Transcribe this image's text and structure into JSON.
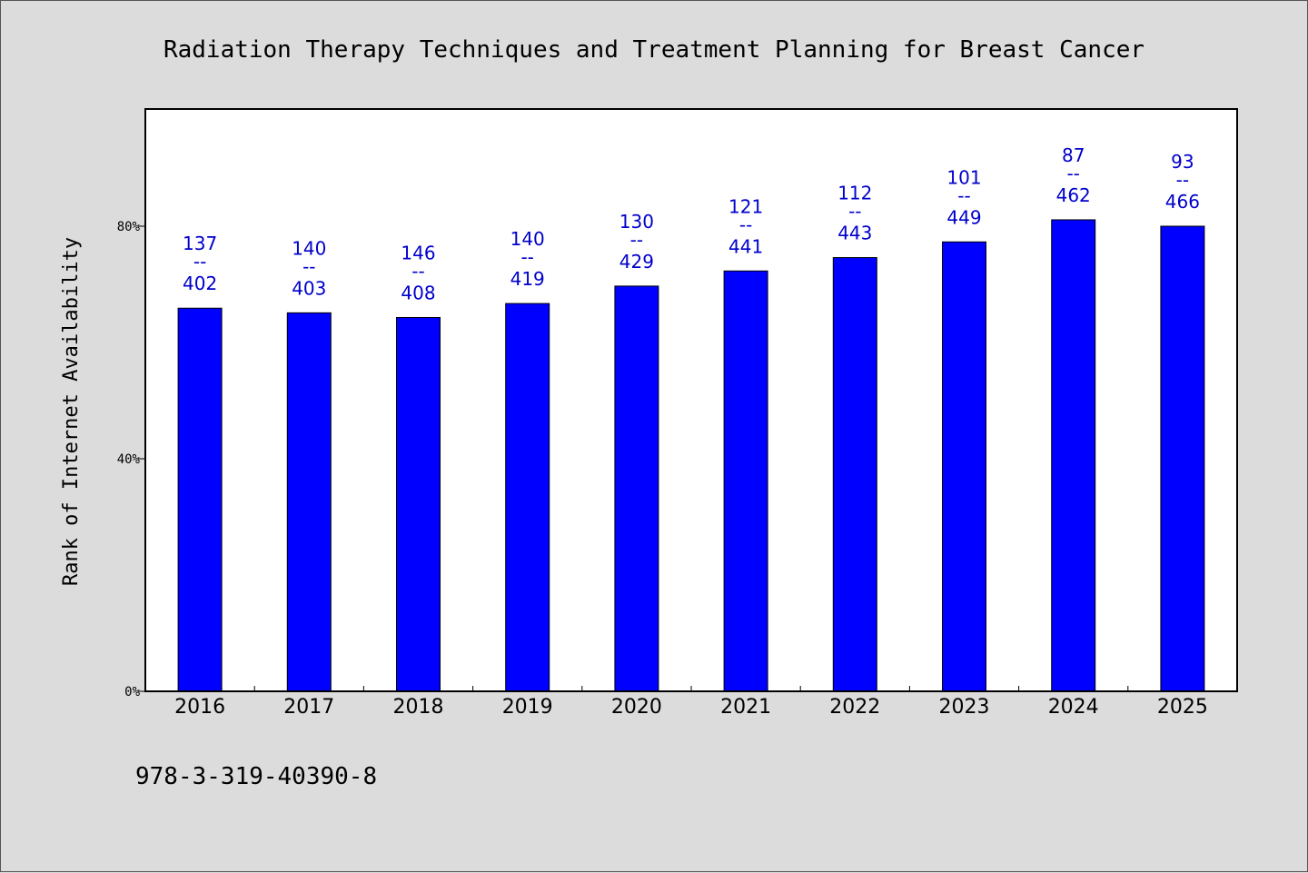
{
  "chart_data": {
    "type": "bar",
    "title": "Radiation Therapy Techniques and Treatment Planning for Breast Cancer",
    "ylabel": "Rank of Internet Availability",
    "xlabel": "",
    "categories": [
      "2016",
      "2017",
      "2018",
      "2019",
      "2020",
      "2021",
      "2022",
      "2023",
      "2024",
      "2025"
    ],
    "values": [
      65.9,
      65.1,
      64.3,
      66.7,
      69.7,
      72.3,
      74.6,
      77.3,
      81.1,
      80.0
    ],
    "labels_top": [
      "137",
      "140",
      "146",
      "140",
      "130",
      "121",
      "112",
      "101",
      "87",
      "93"
    ],
    "labels_sep": "--",
    "labels_bottom": [
      "402",
      "403",
      "408",
      "419",
      "429",
      "441",
      "443",
      "449",
      "462",
      "466"
    ],
    "yticks": [
      0,
      40,
      80
    ],
    "ytick_labels": [
      "0%",
      "40%",
      "80%"
    ],
    "ylim": [
      0,
      100
    ],
    "grid": false,
    "legend": "none",
    "colors": {
      "bar": "#0000ff",
      "data_label": "#0000cc",
      "plot_background": "#ffffff",
      "page_background": "#dcdcdc"
    }
  },
  "footer": {
    "isbn": "978-3-319-40390-8"
  }
}
